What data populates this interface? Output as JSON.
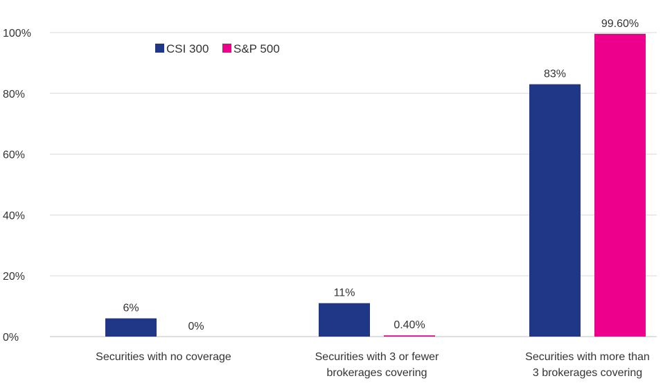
{
  "chart_data": {
    "type": "bar",
    "categories": [
      "Securities with no coverage",
      [
        "Securities with 3 or fewer",
        "brokerages covering"
      ],
      [
        "Securities with more than",
        "3 brokerages covering"
      ]
    ],
    "series": [
      {
        "name": "CSI 300",
        "color": "#1f3786",
        "values": [
          6,
          11,
          83
        ],
        "labels": [
          "6%",
          "11%",
          "83%"
        ]
      },
      {
        "name": "S&P 500",
        "color": "#ec008c",
        "values": [
          0,
          0.4,
          99.6
        ],
        "labels": [
          "0%",
          "0.40%",
          "99.60%"
        ]
      }
    ],
    "ylim": [
      0,
      100
    ],
    "yticks": [
      0,
      20,
      40,
      60,
      80,
      100
    ],
    "ytick_labels": [
      "0%",
      "20%",
      "40%",
      "60%",
      "80%",
      "100%"
    ],
    "grid": true,
    "legend_position": "top-left"
  }
}
